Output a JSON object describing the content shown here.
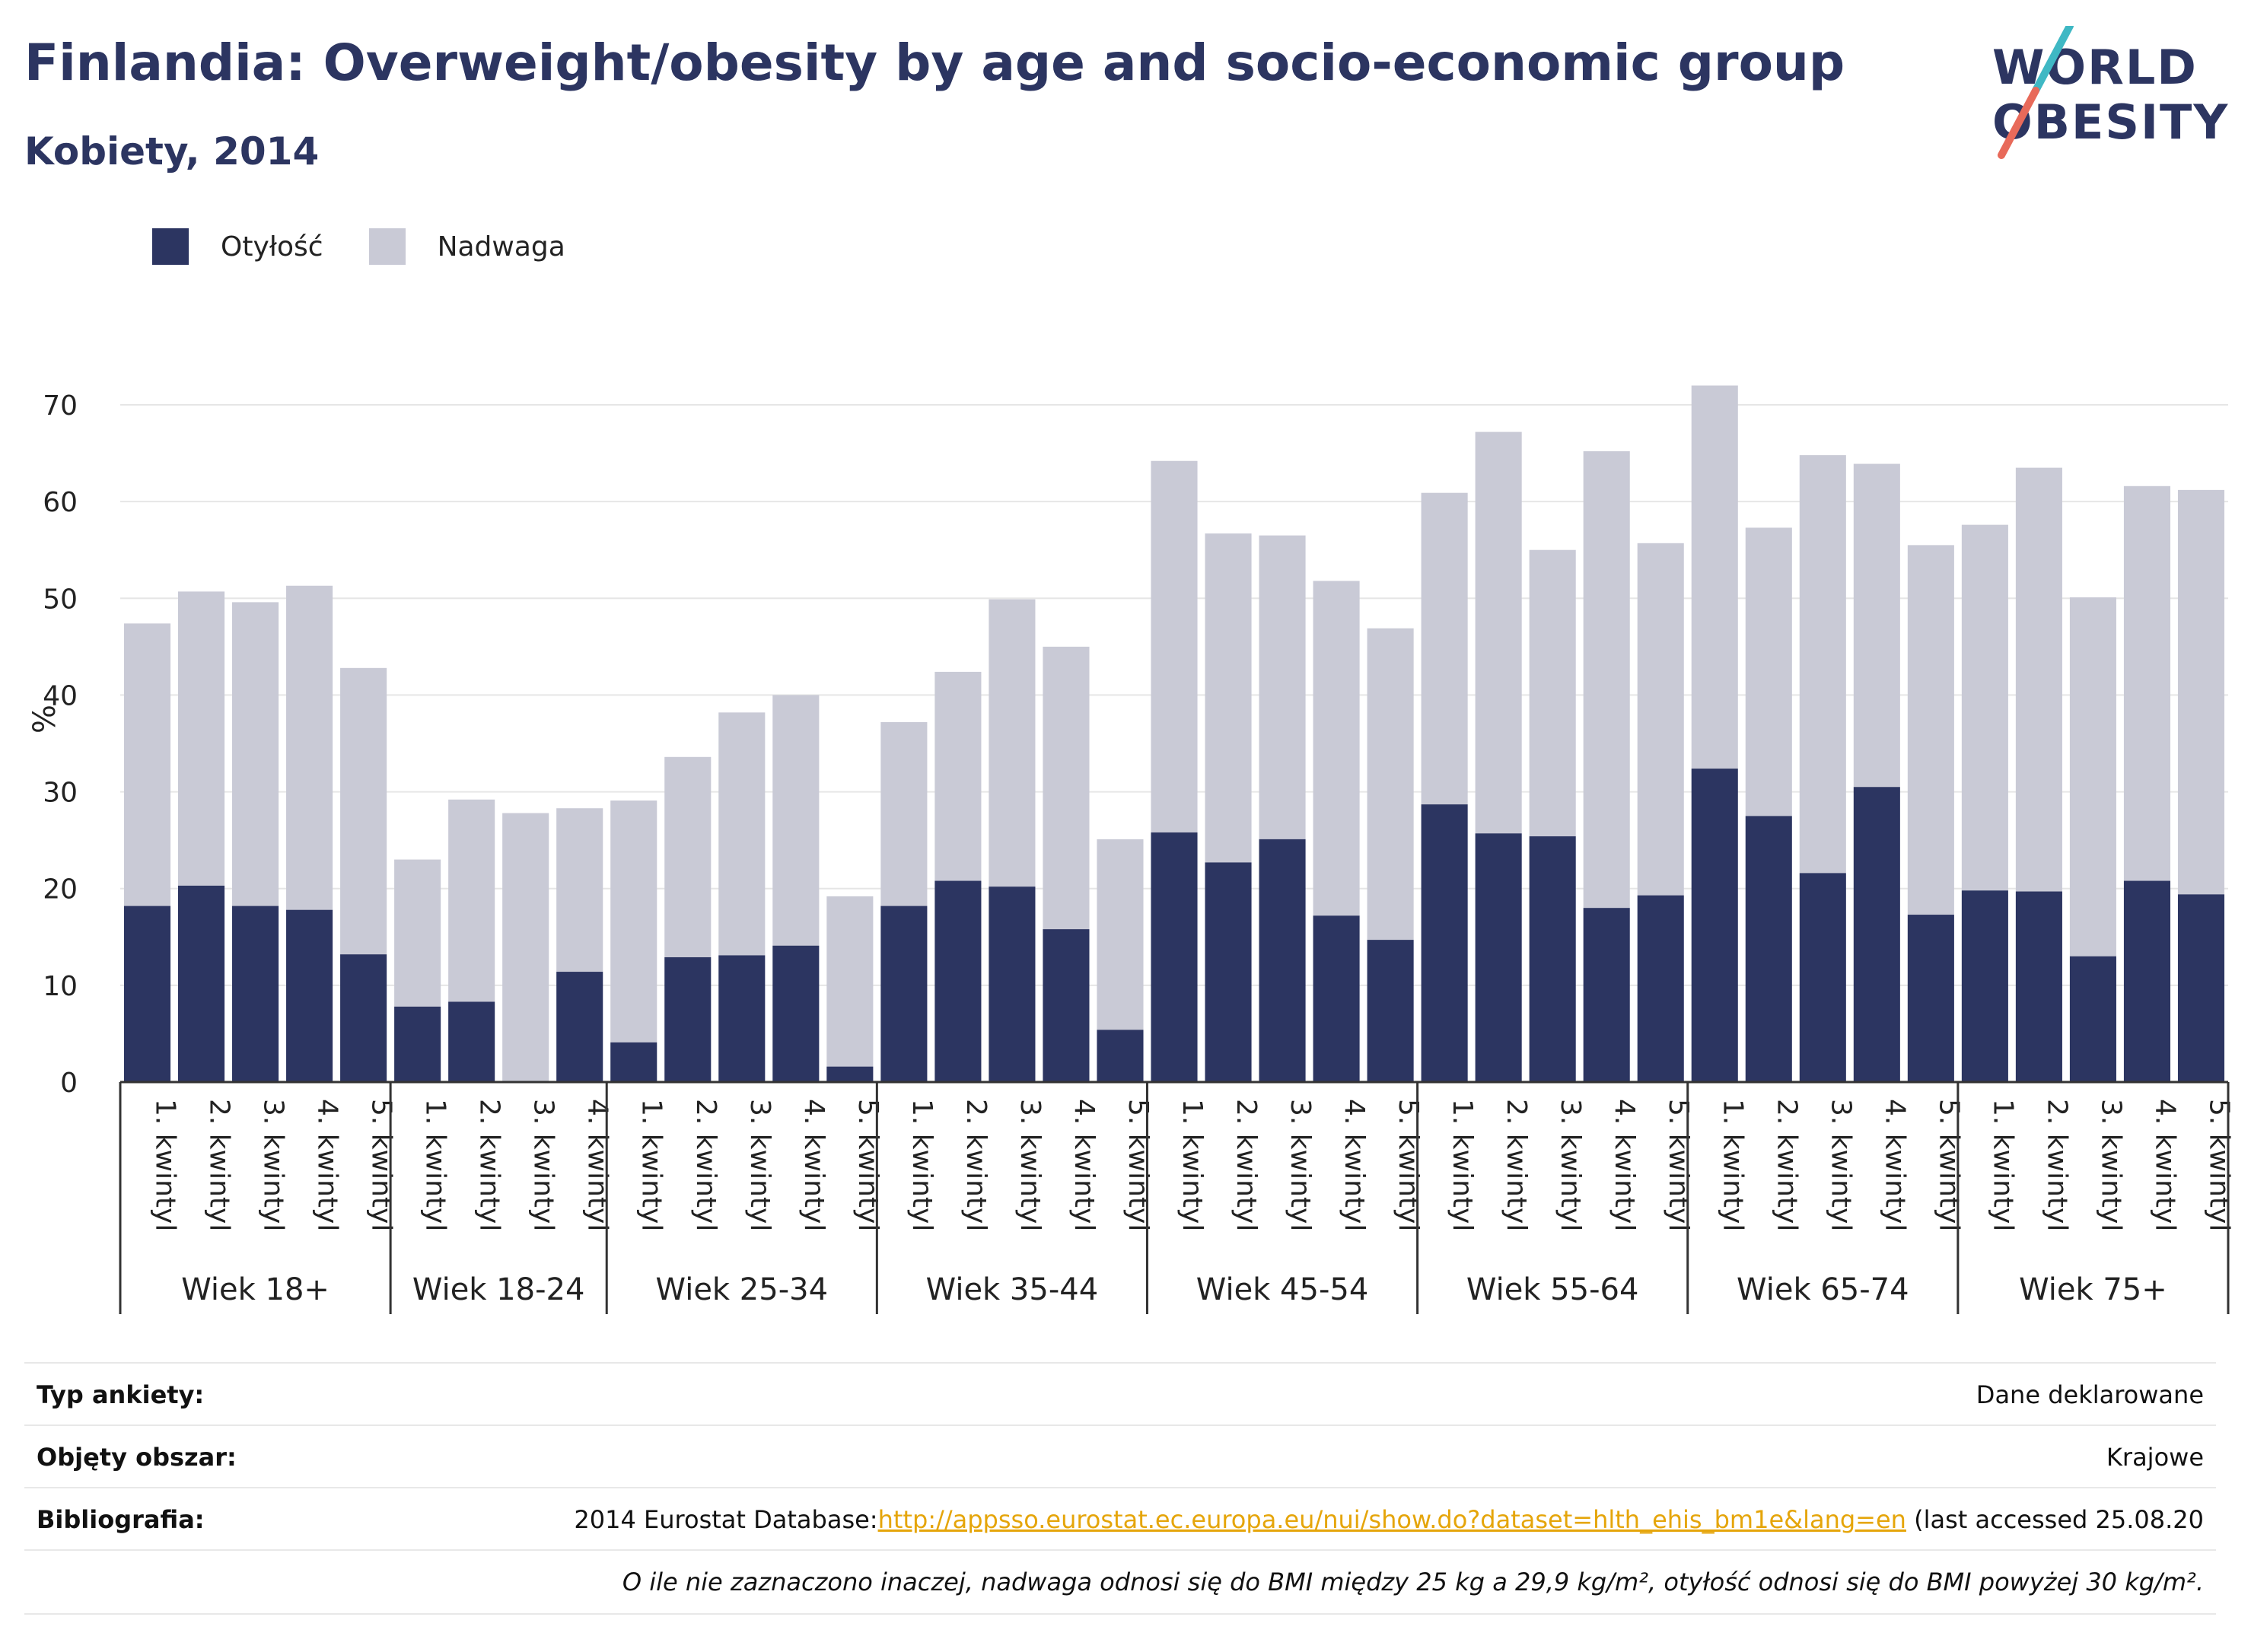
{
  "header": {
    "title": "Finlandia: Overweight/obesity by age and socio-economic group",
    "subtitle": "Kobiety, 2014"
  },
  "logo": {
    "line1": "WORLD",
    "line2": "OBESITY",
    "accent_colors": [
      "#3fb8c4",
      "#e86a5a"
    ]
  },
  "legend": [
    {
      "label": "Otyłość",
      "color": "#2c3561"
    },
    {
      "label": "Nadwaga",
      "color": "#c9cad6"
    }
  ],
  "chart_data": {
    "type": "bar",
    "stacked": true,
    "ylabel": "%",
    "ylim": [
      0,
      75
    ],
    "yticks": [
      0,
      10,
      20,
      30,
      40,
      50,
      60,
      70
    ],
    "grid": true,
    "legend_position": "top-left",
    "groups": [
      {
        "label": "Wiek 18+",
        "categories": [
          "1. kwintyl",
          "2. kwintyl",
          "3. kwintyl",
          "4. kwintyl",
          "5. kwintyl"
        ]
      },
      {
        "label": "Wiek 18-24",
        "categories": [
          "1. kwintyl",
          "2. kwintyl",
          "3. kwintyl",
          "4. kwintyl"
        ]
      },
      {
        "label": "Wiek 25-34",
        "categories": [
          "1. kwintyl",
          "2. kwintyl",
          "3. kwintyl",
          "4. kwintyl",
          "5. kwintyl"
        ]
      },
      {
        "label": "Wiek 35-44",
        "categories": [
          "1. kwintyl",
          "2. kwintyl",
          "3. kwintyl",
          "4. kwintyl",
          "5. kwintyl"
        ]
      },
      {
        "label": "Wiek 45-54",
        "categories": [
          "1. kwintyl",
          "2. kwintyl",
          "3. kwintyl",
          "4. kwintyl",
          "5. kwintyl"
        ]
      },
      {
        "label": "Wiek 55-64",
        "categories": [
          "1. kwintyl",
          "2. kwintyl",
          "3. kwintyl",
          "4. kwintyl",
          "5. kwintyl"
        ]
      },
      {
        "label": "Wiek 65-74",
        "categories": [
          "1. kwintyl",
          "2. kwintyl",
          "3. kwintyl",
          "4. kwintyl",
          "5. kwintyl"
        ]
      },
      {
        "label": "Wiek 75+",
        "categories": [
          "1. kwintyl",
          "2. kwintyl",
          "3. kwintyl",
          "4. kwintyl",
          "5. kwintyl"
        ]
      }
    ],
    "series": [
      {
        "name": "Otyłość",
        "color": "#2c3561",
        "values": [
          18.2,
          20.3,
          18.2,
          17.8,
          13.2,
          7.8,
          8.3,
          0,
          11.4,
          4.1,
          12.9,
          13.1,
          14.1,
          1.6,
          18.2,
          20.8,
          20.2,
          15.8,
          5.4,
          25.8,
          22.7,
          25.1,
          17.2,
          14.7,
          28.7,
          25.7,
          25.4,
          18.0,
          19.3,
          32.4,
          27.5,
          21.6,
          30.5,
          17.3,
          19.8,
          19.7,
          13.0,
          20.8,
          19.4
        ]
      },
      {
        "name": "Nadwaga",
        "color": "#c9cad6",
        "values": [
          29.2,
          30.4,
          31.4,
          33.5,
          29.6,
          15.2,
          20.9,
          27.8,
          16.9,
          25.0,
          20.7,
          25.1,
          25.9,
          17.6,
          19.0,
          21.6,
          29.7,
          29.2,
          19.7,
          38.4,
          34.0,
          31.4,
          34.6,
          32.2,
          32.2,
          41.5,
          29.6,
          47.2,
          36.4,
          39.6,
          29.8,
          43.2,
          33.4,
          38.2,
          37.8,
          43.8,
          37.1,
          40.8,
          41.8
        ]
      }
    ]
  },
  "info": {
    "survey_label": "Typ ankiety:",
    "survey_value": "Dane deklarowane",
    "area_label": "Objęty obszar:",
    "area_value": "Krajowe",
    "bib_label": "Bibliografia:",
    "bib_prefix": "2014 Eurostat Database:",
    "bib_link": "http://appsso.eurostat.ec.europa.eu/nui/show.do?dataset=hlth_ehis_bm1e&lang=en",
    "bib_suffix": " (last accessed 25.08.20",
    "note": "O ile nie zaznaczono inaczej, nadwaga odnosi się do BMI między 25 kg a 29,9 kg/m², otyłość odnosi się do BMI powyżej 30 kg/m²."
  }
}
